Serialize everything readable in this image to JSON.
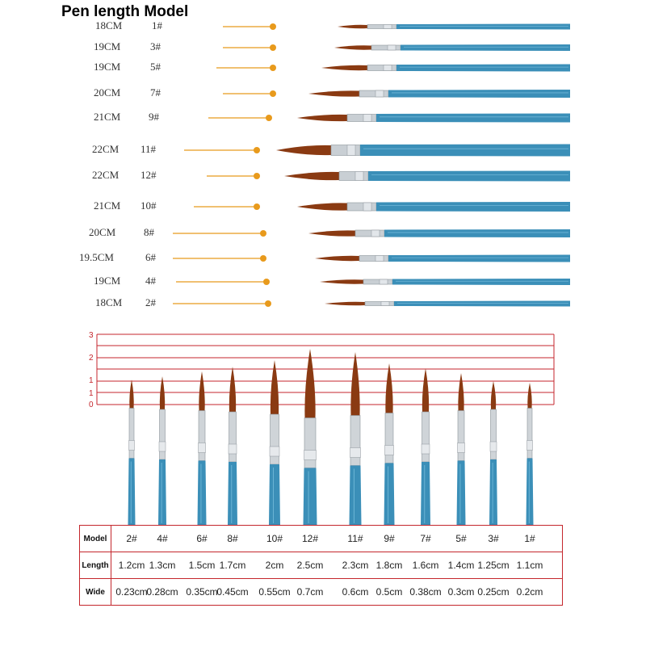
{
  "title": "Pen length Model",
  "top_list": [
    {
      "length": "18CM",
      "model": "1#"
    },
    {
      "length": "19CM",
      "model": "3#"
    },
    {
      "length": "19CM",
      "model": "5#"
    },
    {
      "length": "20CM",
      "model": "7#"
    },
    {
      "length": "21CM",
      "model": "9#"
    },
    {
      "length": "22CM",
      "model": "11#"
    },
    {
      "length": "22CM",
      "model": "12#"
    },
    {
      "length": "21CM",
      "model": "10#"
    },
    {
      "length": "20CM",
      "model": "8#"
    },
    {
      "length": "19.5CM",
      "model": "6#"
    },
    {
      "length": "19CM",
      "model": "4#"
    },
    {
      "length": "18CM",
      "model": "2#"
    }
  ],
  "scale_ticks": [
    "3",
    "2",
    "1",
    "1",
    "0"
  ],
  "table": {
    "model_label": "Model",
    "length_label": "Length",
    "wide_label": "Wide",
    "models": [
      "2#",
      "4#",
      "6#",
      "8#",
      "10#",
      "12#",
      "11#",
      "9#",
      "7#",
      "5#",
      "3#",
      "1#"
    ],
    "lengths": [
      "1.2cm",
      "1.3cm",
      "1.5cm",
      "1.7cm",
      "2cm",
      "2.5cm",
      "2.3cm",
      "1.8cm",
      "1.6cm",
      "1.4cm",
      "1.25cm",
      "1.1cm"
    ],
    "wides": [
      "0.23cm",
      "0.28cm",
      "0.35cm",
      "0.45cm",
      "0.55cm",
      "0.7cm",
      "0.6cm",
      "0.5cm",
      "0.38cm",
      "0.3cm",
      "0.25cm",
      "0.2cm"
    ]
  },
  "colors": {
    "handle": "#3b8fb8",
    "bristle": "#8a3a12",
    "accent": "#e89a1c",
    "grid": "#c4262c"
  }
}
